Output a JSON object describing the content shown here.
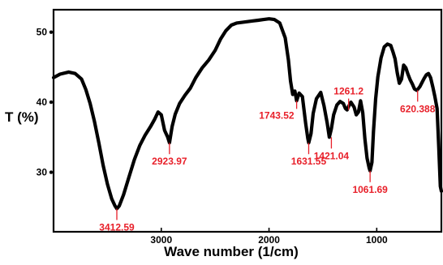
{
  "chart_data": {
    "type": "line",
    "title": "",
    "xlabel": "Wave number (1/cm)",
    "ylabel": "T (%)",
    "xlim": [
      4000,
      400
    ],
    "ylim": [
      21.5,
      53.2
    ],
    "x_ticks": [
      3000,
      2000,
      1000
    ],
    "y_ticks": [
      30,
      40,
      50
    ],
    "x_reversed": true,
    "grid": false,
    "colors": {
      "line": "#000000",
      "annotation": "#e8202a"
    },
    "series": [
      {
        "x": [
          4000,
          3940,
          3860,
          3800,
          3740,
          3700,
          3660,
          3620,
          3580,
          3540,
          3500,
          3460,
          3430,
          3412.59,
          3390,
          3350,
          3300,
          3250,
          3200,
          3150,
          3100,
          3060,
          3030,
          3000,
          2970,
          2940,
          2923.97,
          2900,
          2870,
          2830,
          2780,
          2730,
          2680,
          2620,
          2560,
          2500,
          2450,
          2400,
          2350,
          2300,
          2250,
          2200,
          2150,
          2100,
          2050,
          2000,
          1950,
          1900,
          1850,
          1820,
          1800,
          1780,
          1760,
          1743.52,
          1720,
          1690,
          1660,
          1640,
          1631.55,
          1610,
          1590,
          1560,
          1520,
          1490,
          1460,
          1440,
          1421.04,
          1400,
          1370,
          1340,
          1310,
          1290,
          1275,
          1261.2,
          1240,
          1210,
          1190,
          1170,
          1150,
          1130,
          1110,
          1090,
          1070,
          1061.69,
          1045,
          1030,
          1010,
          990,
          960,
          930,
          900,
          870,
          850,
          830,
          810,
          790,
          770,
          750,
          730,
          710,
          690,
          670,
          650,
          630,
          620.388,
          600,
          580,
          560,
          540,
          520,
          500,
          480,
          460,
          440,
          425,
          410,
          400
        ],
        "y": [
          43.5,
          44,
          44.3,
          44.1,
          43.3,
          41.8,
          39.8,
          37.2,
          34.2,
          31,
          28.3,
          26.2,
          25.2,
          24.8,
          25.2,
          26.8,
          29.3,
          31.8,
          33.8,
          35.3,
          36.5,
          37.6,
          38.6,
          38.2,
          36,
          35,
          34.2,
          36.5,
          38.3,
          39.8,
          41,
          42,
          43.5,
          44.9,
          46,
          47.4,
          49,
          50.2,
          51,
          51.3,
          51.4,
          51.5,
          51.6,
          51.7,
          51.8,
          51.9,
          51.8,
          51.3,
          49.2,
          46,
          43,
          41.1,
          41.6,
          40.2,
          41.3,
          40.8,
          37,
          34.8,
          34.2,
          35.5,
          38.4,
          40.5,
          41.4,
          39.5,
          37,
          35,
          36.2,
          38.2,
          39.6,
          40.1,
          39.8,
          39.1,
          38.9,
          39.4,
          40,
          39.3,
          38.2,
          38.6,
          40.2,
          38.5,
          34.8,
          32,
          30.6,
          30.2,
          31.4,
          35.8,
          40.5,
          43.6,
          46.3,
          47.9,
          48.3,
          48.1,
          47.2,
          46.2,
          44.2,
          42.7,
          43.3,
          45.3,
          44.9,
          44,
          43.2,
          42.6,
          41.9,
          41.7,
          41.8,
          42.2,
          42.8,
          43.4,
          43.9,
          44.1,
          43.5,
          42.2,
          40.8,
          39.1,
          33.8,
          28,
          27.3
        ]
      }
    ],
    "annotations": [
      {
        "label": "3412.59",
        "x": 3412.59,
        "y": 24.8
      },
      {
        "label": "2923.97",
        "x": 2923.97,
        "y": 34.2
      },
      {
        "label": "1743.52",
        "x": 1743.52,
        "y": 40.2
      },
      {
        "label": "1631.55",
        "x": 1631.55,
        "y": 34.2
      },
      {
        "label": "1421.04",
        "x": 1421.04,
        "y": 35
      },
      {
        "label": "1261.2",
        "x": 1261.2,
        "y": 38.9
      },
      {
        "label": "1061.69",
        "x": 1061.69,
        "y": 30.2
      },
      {
        "label": "620.388",
        "x": 620.388,
        "y": 41.7
      }
    ]
  }
}
